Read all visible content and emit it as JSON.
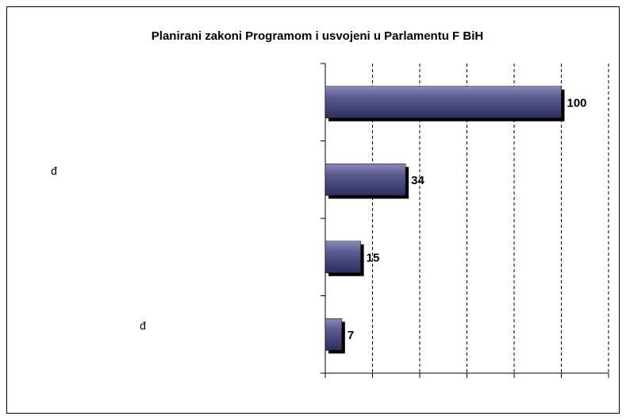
{
  "chart_data": {
    "type": "bar",
    "orientation": "horizontal",
    "title": "Planirani zakoni Programom i usvojeni u Parlamentu F BiH",
    "categories": [
      null,
      "đ",
      null,
      "đ"
    ],
    "values": [
      100,
      34,
      15,
      7
    ],
    "color": "#4b4b80",
    "xlim": [
      0,
      120
    ],
    "xticks": [
      0,
      20,
      40,
      60,
      80,
      100,
      120
    ],
    "grid": true
  }
}
